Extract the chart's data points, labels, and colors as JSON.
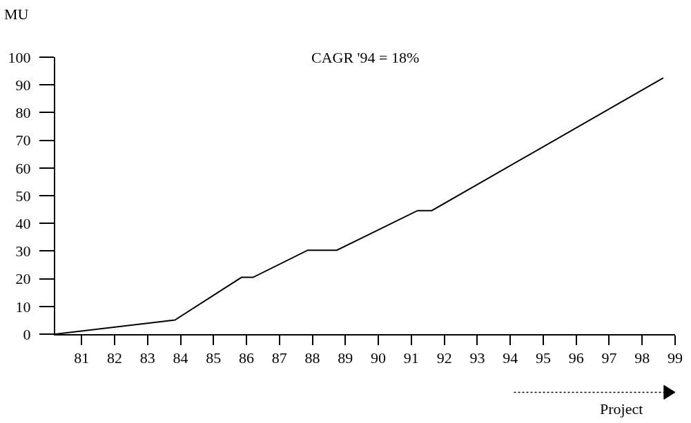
{
  "chart_data": {
    "type": "line",
    "ylabel": "MU",
    "annotations": [
      "CAGR '94 = 18%",
      "Project"
    ],
    "x": [
      80.2,
      83.83,
      85.85,
      86.2,
      87.86,
      88.74,
      91.19,
      91.62,
      98.64
    ],
    "series": [
      {
        "color": "#000000",
        "values": [
          0,
          5.1,
          20.5,
          20.5,
          30.3,
          30.3,
          44.6,
          44.6,
          92.5
        ]
      }
    ],
    "xlim": [
      80.2,
      99
    ],
    "xticks": [
      81,
      82,
      83,
      84,
      85,
      86,
      87,
      88,
      89,
      90,
      91,
      92,
      93,
      94,
      95,
      96,
      97,
      98,
      99
    ],
    "ylim": [
      0,
      100
    ],
    "yticks": [
      0,
      10,
      20,
      30,
      40,
      50,
      60,
      70,
      80,
      90,
      100
    ],
    "marker": "none",
    "line_style": "solid"
  }
}
